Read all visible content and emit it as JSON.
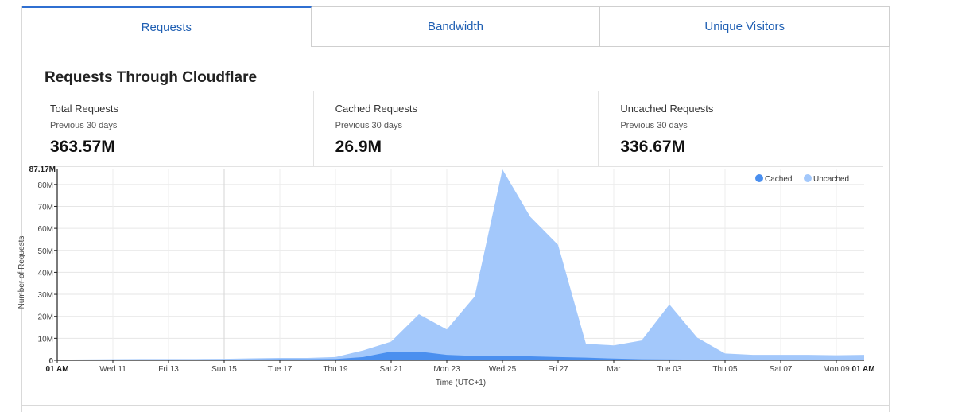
{
  "tabs": [
    {
      "label": "Requests"
    },
    {
      "label": "Bandwidth"
    },
    {
      "label": "Unique Visitors"
    }
  ],
  "section_title": "Requests Through Cloudflare",
  "stats": [
    {
      "label": "Total Requests",
      "sub": "Previous 30 days",
      "value": "363.57M"
    },
    {
      "label": "Cached Requests",
      "sub": "Previous 30 days",
      "value": "26.9M"
    },
    {
      "label": "Uncached Requests",
      "sub": "Previous 30 days",
      "value": "336.67M"
    }
  ],
  "colors": {
    "cached": "#4a8fef",
    "uncached": "#a3c8fb",
    "tab_text": "#1f5fb3",
    "tab_active_border": "#2f6fd1"
  },
  "chart_data": {
    "type": "area",
    "stacked": true,
    "title": "",
    "xlabel": "Time (UTC+1)",
    "ylabel": "Number of Requests",
    "ylim": [
      0,
      87.17
    ],
    "y_max_label": "87.17M",
    "y_ticks": [
      {
        "value": 0,
        "label": "0"
      },
      {
        "value": 10,
        "label": "10M"
      },
      {
        "value": 20,
        "label": "20M"
      },
      {
        "value": 30,
        "label": "30M"
      },
      {
        "value": 40,
        "label": "40M"
      },
      {
        "value": 50,
        "label": "50M"
      },
      {
        "value": 60,
        "label": "60M"
      },
      {
        "value": 70,
        "label": "70M"
      },
      {
        "value": 80,
        "label": "80M"
      }
    ],
    "x_ticks": [
      {
        "day": 0,
        "label": "01 AM",
        "bold": true
      },
      {
        "day": 2,
        "label": "Wed 11"
      },
      {
        "day": 4,
        "label": "Fri 13"
      },
      {
        "day": 6,
        "label": "Sun 15"
      },
      {
        "day": 8,
        "label": "Tue 17"
      },
      {
        "day": 10,
        "label": "Thu 19"
      },
      {
        "day": 12,
        "label": "Sat 21"
      },
      {
        "day": 14,
        "label": "Mon 23"
      },
      {
        "day": 16,
        "label": "Wed 25"
      },
      {
        "day": 18,
        "label": "Fri 27"
      },
      {
        "day": 20,
        "label": "Mar"
      },
      {
        "day": 22,
        "label": "Tue 03"
      },
      {
        "day": 24,
        "label": "Thu 05"
      },
      {
        "day": 26,
        "label": "Sat 07"
      },
      {
        "day": 28,
        "label": "Mon 09",
        "suffix": "01 AM"
      }
    ],
    "x_range": [
      0,
      29
    ],
    "x": [
      0,
      1,
      2,
      3,
      4,
      5,
      6,
      7,
      8,
      9,
      10,
      11,
      12,
      13,
      14,
      15,
      16,
      17,
      18,
      19,
      20,
      21,
      22,
      23,
      24,
      25,
      26,
      27,
      28,
      29
    ],
    "series": [
      {
        "name": "Cached",
        "values": [
          0.1,
          0.1,
          0.2,
          0.2,
          0.3,
          0.3,
          0.3,
          0.4,
          0.5,
          0.5,
          0.6,
          1.5,
          4.0,
          4.0,
          2.5,
          2.0,
          1.8,
          1.8,
          1.5,
          1.2,
          0.8,
          0.5,
          0.4,
          0.3,
          0.3,
          0.3,
          0.3,
          0.3,
          0.3,
          0.3
        ]
      },
      {
        "name": "Uncached",
        "values": [
          0.2,
          0.3,
          0.3,
          0.4,
          0.3,
          0.3,
          0.4,
          0.5,
          0.6,
          0.6,
          0.9,
          3.0,
          4.5,
          17.0,
          11.5,
          27.0,
          85.0,
          63.5,
          51.0,
          6.3,
          6.0,
          8.5,
          25.0,
          10.0,
          2.8,
          2.2,
          2.2,
          2.2,
          2.0,
          2.2
        ]
      }
    ],
    "legend": [
      {
        "name": "Cached"
      },
      {
        "name": "Uncached"
      }
    ],
    "legend_position": "top-right",
    "grid": true
  }
}
